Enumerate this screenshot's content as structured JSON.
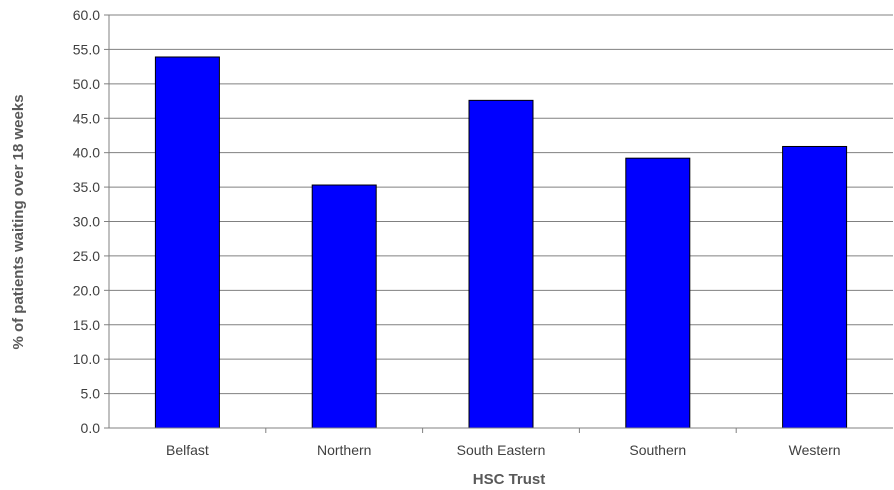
{
  "chart_data": {
    "type": "bar",
    "title": "",
    "xlabel": "HSC Trust",
    "ylabel": "% of patients waiting over 18 weeks",
    "categories": [
      "Belfast",
      "Northern",
      "South Eastern",
      "Southern",
      "Western"
    ],
    "values": [
      53.9,
      35.3,
      47.6,
      39.2,
      40.9
    ],
    "ylim": [
      0,
      60
    ],
    "yticks": [
      "0.0",
      "5.0",
      "10.0",
      "15.0",
      "20.0",
      "25.0",
      "30.0",
      "35.0",
      "40.0",
      "45.0",
      "50.0",
      "55.0",
      "60.0"
    ],
    "grid": true,
    "legend": "none",
    "colors": {
      "bar_fill": "#0000FF",
      "bar_stroke": "#000000",
      "gridline": "#808080",
      "axis": "#808080"
    }
  }
}
